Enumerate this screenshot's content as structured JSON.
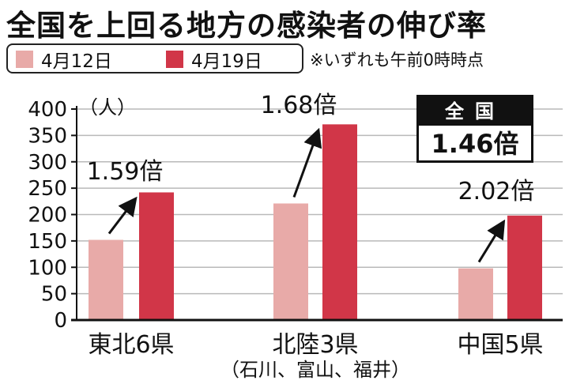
{
  "title": "全国を上回る地方の感染者の伸び率",
  "legend": {
    "items": [
      {
        "label": "4月12日",
        "color": "#e8aaa8"
      },
      {
        "label": "4月19日",
        "color": "#d13648"
      }
    ],
    "note": "※いずれも午前0時時点"
  },
  "national": {
    "label": "全国",
    "value": "1.46倍"
  },
  "chart_data": {
    "type": "bar",
    "unit_label": "（人）",
    "yticks": [
      "400",
      "350",
      "300",
      "250",
      "200",
      "150",
      "100",
      "50",
      "0"
    ],
    "ylim": [
      0,
      400
    ],
    "grid": true,
    "categories": [
      "東北6県",
      "北陸3県",
      "中国5県"
    ],
    "sublabels": [
      "",
      "（石川、富山、福井）",
      ""
    ],
    "series": [
      {
        "name": "4月12日",
        "values": [
          152,
          221,
          98
        ]
      },
      {
        "name": "4月19日",
        "values": [
          242,
          371,
          198
        ]
      }
    ],
    "ratios": [
      "1.59倍",
      "1.68倍",
      "2.02倍"
    ]
  }
}
